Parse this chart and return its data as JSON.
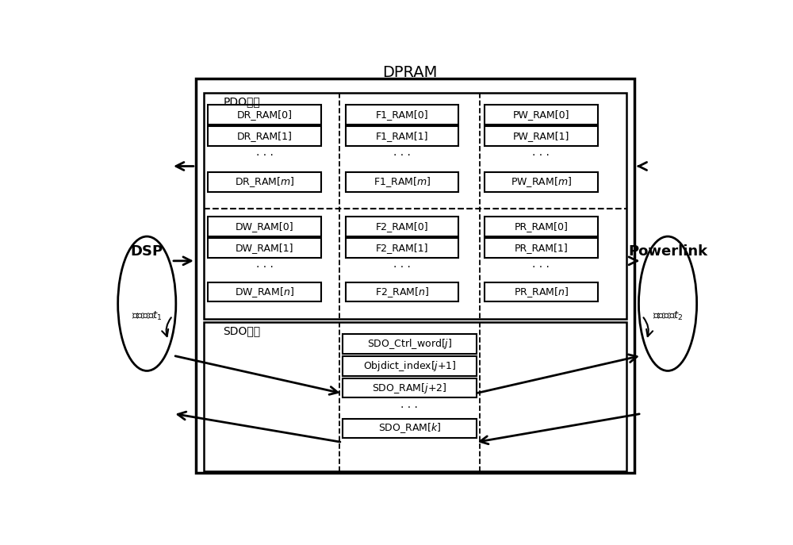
{
  "title": "DPRAM",
  "bg_color": "#ffffff",
  "fig_width": 10.0,
  "fig_height": 6.87,
  "dpi": 100,
  "left_label": "DSP",
  "right_label": "Powerlink",
  "left_cycle": "存取周期$t_1$",
  "right_cycle": "存取周期$t_2$",
  "pdo_label": "PDO通道",
  "sdo_label": "SDO通道"
}
